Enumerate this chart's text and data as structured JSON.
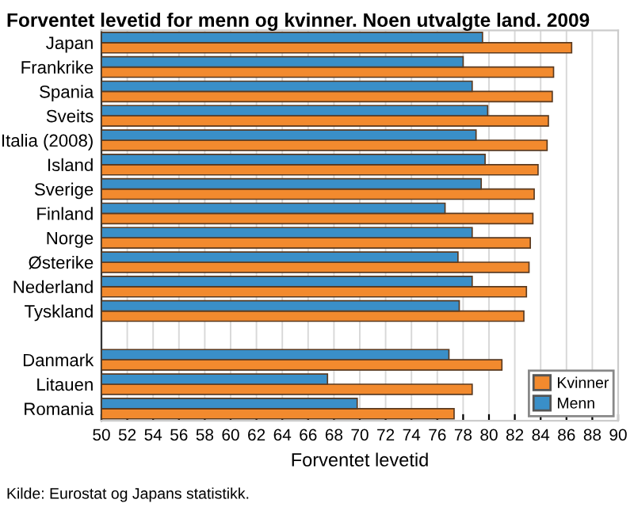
{
  "chart_data": {
    "type": "bar",
    "orientation": "horizontal",
    "title": "Forventet levetid for menn og kvinner. Noen utvalgte land. 2009",
    "categories": [
      "Japan",
      "Frankrike",
      "Spania",
      "Sveits",
      "Italia (2008)",
      "Island",
      "Sverige",
      "Finland",
      "Norge",
      "Østerike",
      "Nederland",
      "Tyskland",
      null,
      "Danmark",
      "Litauen",
      "Romania"
    ],
    "series": [
      {
        "name": "Kvinner",
        "color": "#f28a2e",
        "values": [
          86.4,
          85.0,
          84.9,
          84.6,
          84.5,
          83.8,
          83.5,
          83.4,
          83.2,
          83.1,
          82.9,
          82.7,
          null,
          81.0,
          78.7,
          77.3
        ]
      },
      {
        "name": "Menn",
        "color": "#3a8fc8",
        "values": [
          79.5,
          78.0,
          78.7,
          79.9,
          79.0,
          79.7,
          79.4,
          76.6,
          78.7,
          77.6,
          78.7,
          77.7,
          null,
          76.9,
          67.5,
          69.8
        ]
      }
    ],
    "xlabel": "Forventet levetid",
    "xlim": [
      50,
      90
    ],
    "xticks": [
      50,
      52,
      54,
      56,
      58,
      60,
      62,
      64,
      66,
      68,
      70,
      72,
      74,
      76,
      78,
      80,
      82,
      84,
      86,
      88,
      90
    ],
    "grid": "x",
    "legend": "bottom right",
    "annotations": [
      "Kilde: Eurostat og Japans statistikk."
    ]
  }
}
